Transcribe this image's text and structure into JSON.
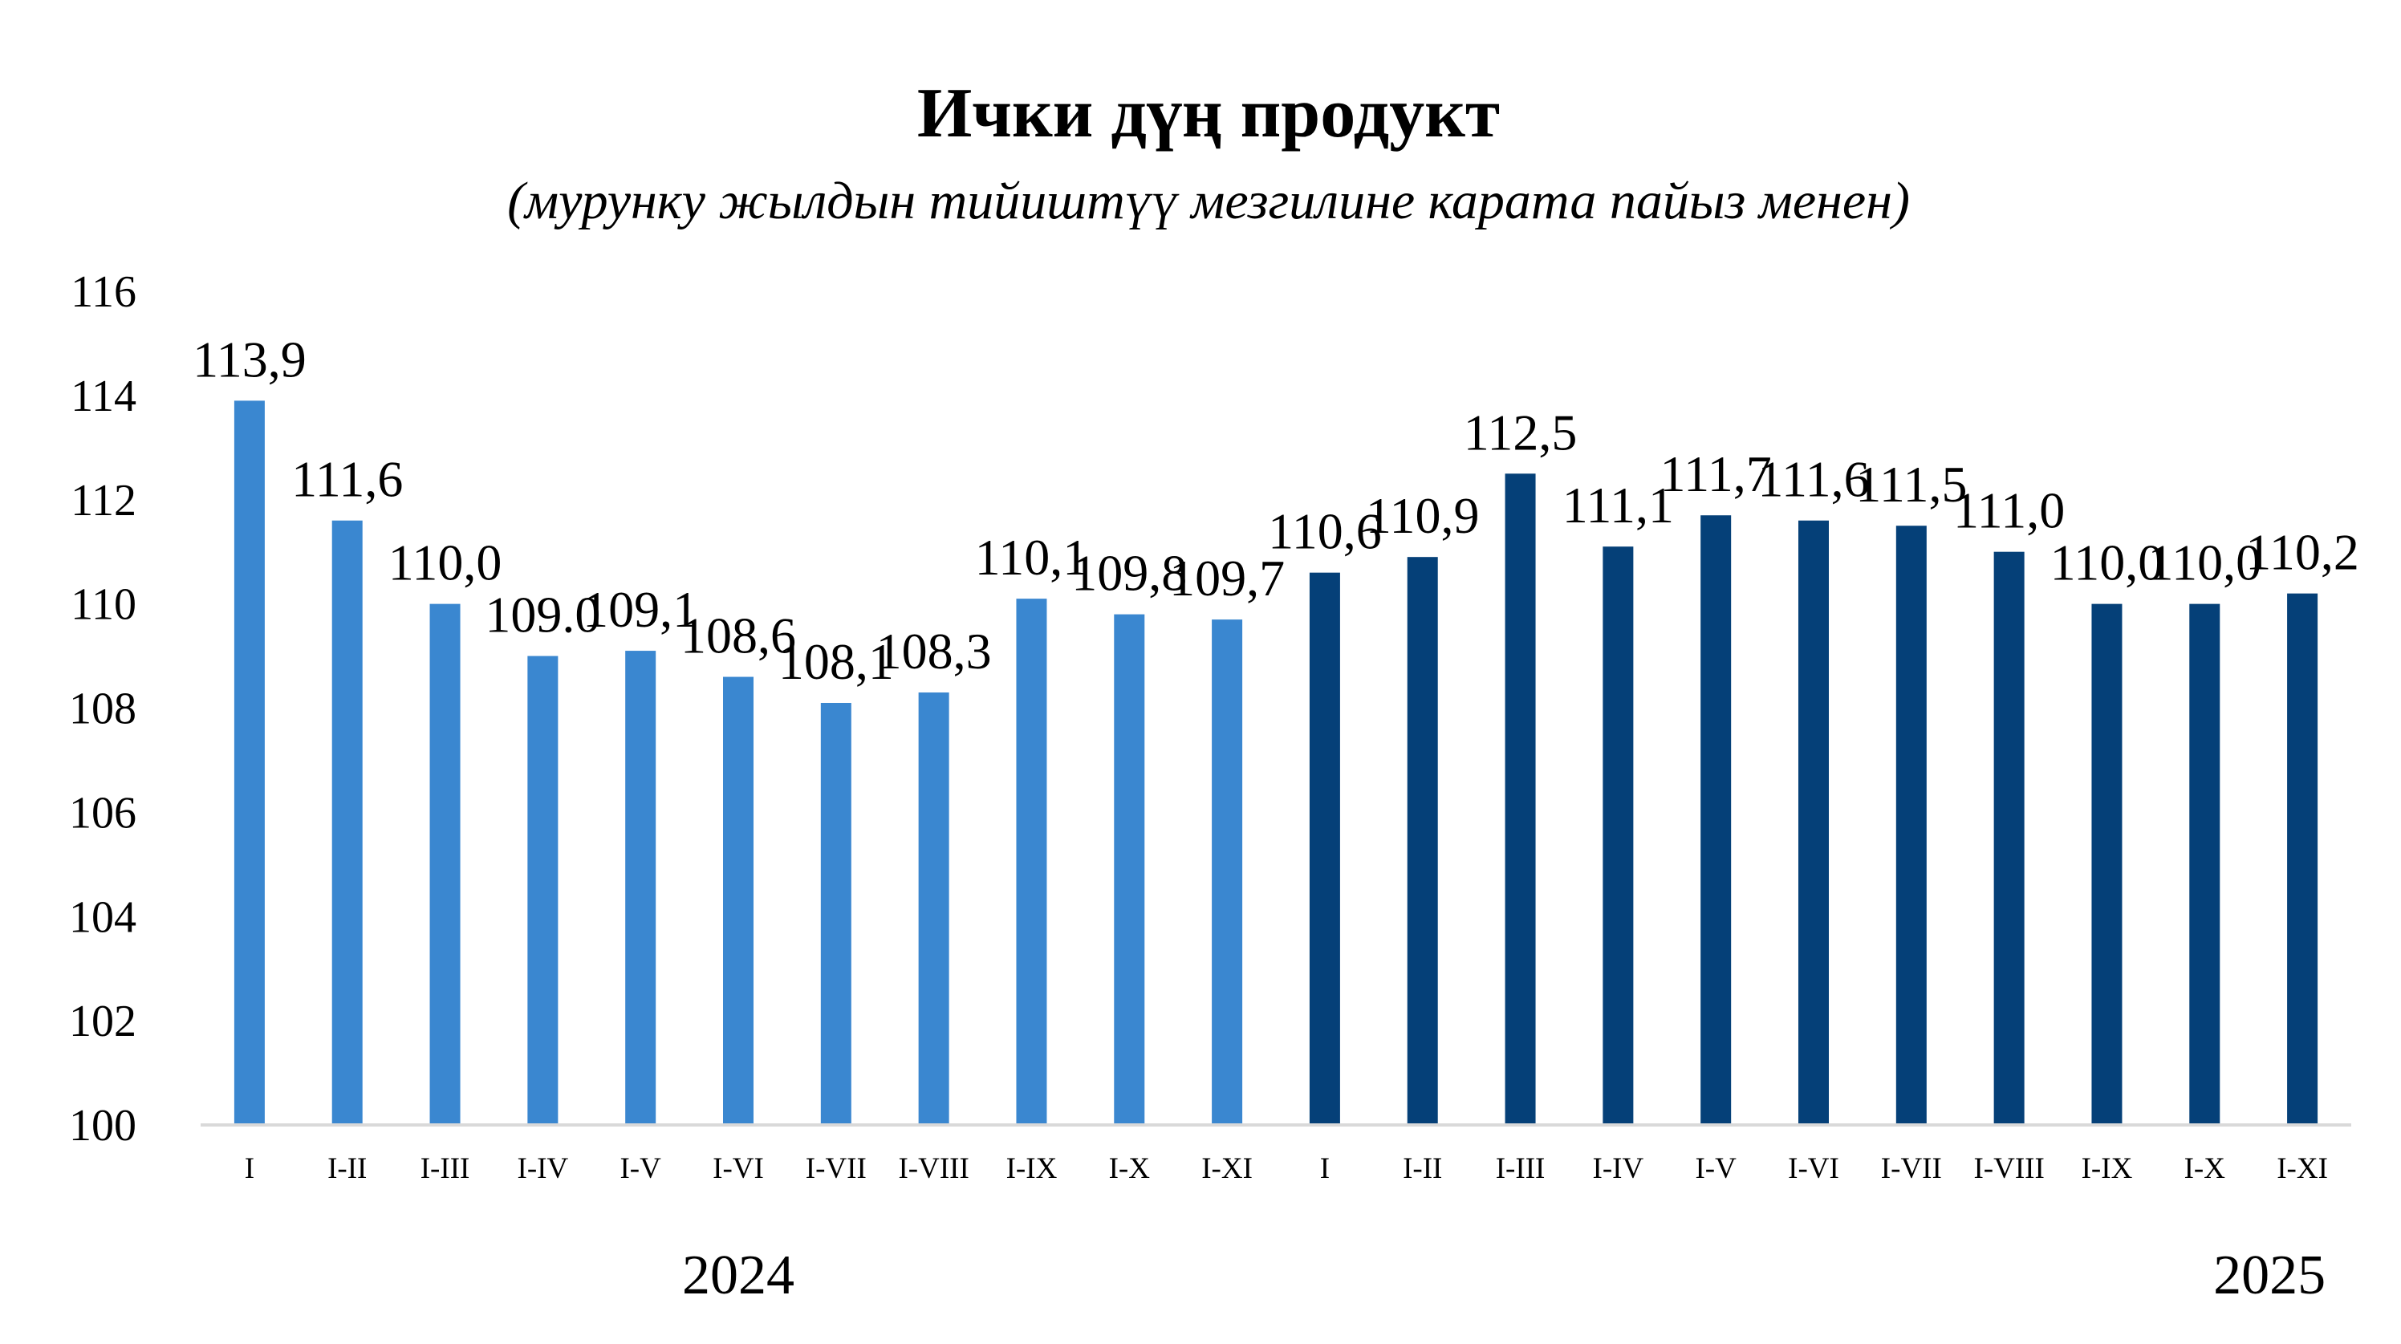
{
  "chart_data": {
    "type": "bar",
    "title": "Ички дүң продукт",
    "subtitle": "(мурунку жылдын тийиштүү мезгилине карата пайыз менен)",
    "categories": [
      "I",
      "I-II",
      "I-III",
      "I-IV",
      "I-V",
      "I-VI",
      "I-VII",
      "I-VIII",
      "I-IX",
      "I-X",
      "I-XI",
      "I",
      "I-II",
      "I-III",
      "I-IV",
      "I-V",
      "I-VI",
      "I-VII",
      "I-VIII",
      "I-IX",
      "I-X",
      "I-XI"
    ],
    "values": [
      113.9,
      111.6,
      110.0,
      109.0,
      109.1,
      108.6,
      108.1,
      108.3,
      110.1,
      109.8,
      109.7,
      110.6,
      110.9,
      112.5,
      111.1,
      111.7,
      111.6,
      111.5,
      111.0,
      110.0,
      110.0,
      110.2
    ],
    "data_labels": [
      "113,9",
      "111,6",
      "110,0",
      "109.0",
      "109,1",
      "108,6",
      "108,1",
      "108,3",
      "110,1",
      "109,8",
      "109,7",
      "110,6",
      "110,9",
      "112,5",
      "111,1",
      "111,7",
      "111,6",
      "111,5",
      "111,0",
      "110,0",
      "110,0",
      "110,2"
    ],
    "groups": [
      {
        "label": "2024",
        "start": 0,
        "count": 11,
        "color": "#3a87d0"
      },
      {
        "label": "2025",
        "start": 11,
        "count": 11,
        "color": "#054078"
      }
    ],
    "ylim": [
      100,
      116
    ],
    "yticks": [
      "100",
      "102",
      "104",
      "106",
      "108",
      "110",
      "112",
      "114",
      "116"
    ],
    "xlabel": "",
    "ylabel": "",
    "grid": false,
    "legend": "none"
  }
}
